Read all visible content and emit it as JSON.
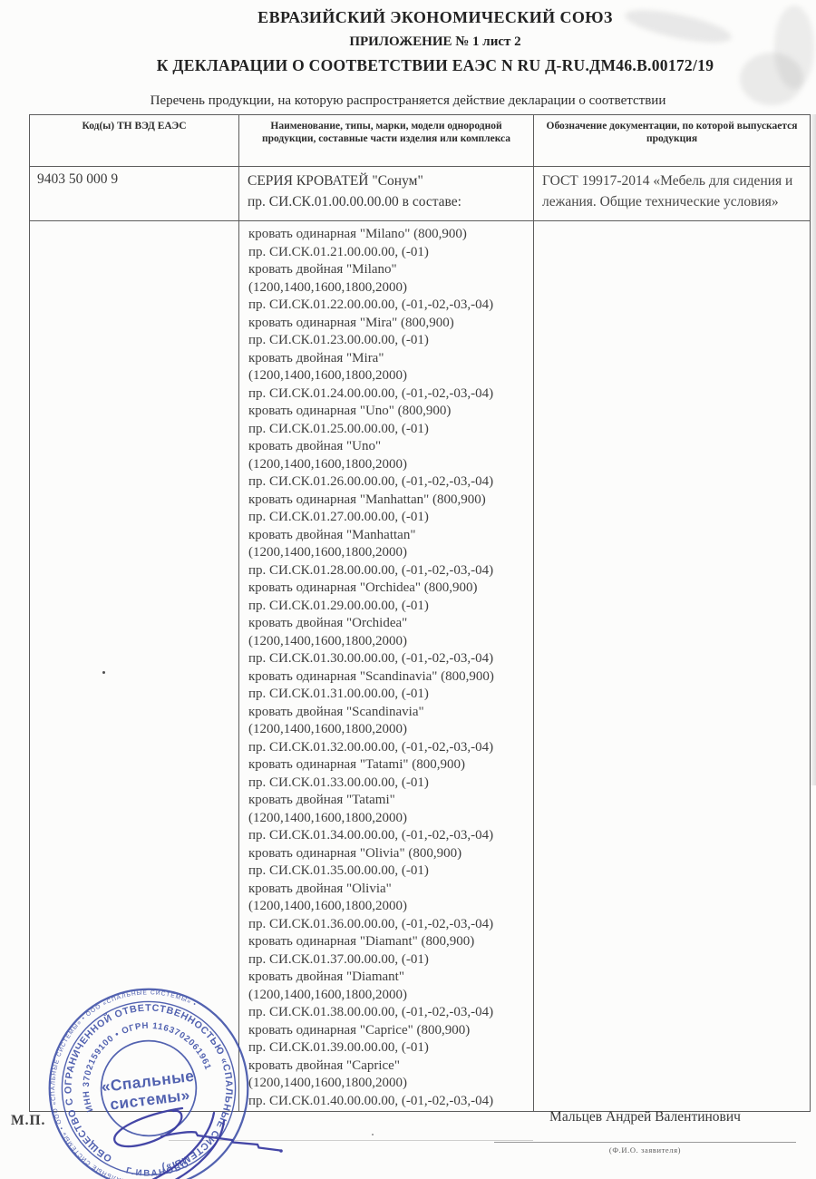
{
  "header": {
    "title_line1": "ЕВРАЗИЙСКИЙ ЭКОНОМИЧЕСКИЙ СОЮЗ",
    "title_line2": "ПРИЛОЖЕНИЕ № 1 лист 2",
    "title_line3": "К ДЕКЛАРАЦИИ О СООТВЕТСТВИИ ЕАЭС N RU Д-RU.ДМ46.В.00172/19",
    "subtitle": "Перечень продукции, на которую распространяется действие декларации о соответствии"
  },
  "table": {
    "headers": [
      "Код(ы) ТН ВЭД ЕАЭС",
      "Наименование, типы, марки, модели однородной продукции, составные части изделия или комплекса",
      "Обозначение документации, по которой выпускается продукция"
    ],
    "row1": {
      "code": "9403 50 000 9",
      "name_line1": "СЕРИЯ КРОВАТЕЙ \"Сонум\"",
      "name_line2": "пр. СИ.СК.01.00.00.00.00 в составе:",
      "doc_line1": "ГОСТ 19917-2014 «Мебель для сидения и",
      "doc_line2": "лежания. Общие технические условия»"
    },
    "row2": {
      "products": [
        "кровать одинарная \"Milano\" (800,900)",
        "пр. СИ.СК.01.21.00.00.00, (-01)",
        "кровать двойная \"Milano\"",
        "(1200,1400,1600,1800,2000)",
        "пр. СИ.СК.01.22.00.00.00, (-01,-02,-03,-04)",
        "кровать одинарная \"Mira\" (800,900)",
        "пр. СИ.СК.01.23.00.00.00, (-01)",
        "кровать двойная \"Mira\"",
        "(1200,1400,1600,1800,2000)",
        "пр. СИ.СК.01.24.00.00.00, (-01,-02,-03,-04)",
        "кровать одинарная \"Uno\" (800,900)",
        "пр. СИ.СК.01.25.00.00.00, (-01)",
        "кровать двойная \"Uno\"",
        "(1200,1400,1600,1800,2000)",
        "пр. СИ.СК.01.26.00.00.00, (-01,-02,-03,-04)",
        "кровать одинарная \"Manhattan\" (800,900)",
        "пр. СИ.СК.01.27.00.00.00, (-01)",
        "кровать двойная \"Manhattan\"",
        "(1200,1400,1600,1800,2000)",
        "пр. СИ.СК.01.28.00.00.00, (-01,-02,-03,-04)",
        "кровать одинарная \"Orchidea\" (800,900)",
        "пр. СИ.СК.01.29.00.00.00, (-01)",
        "кровать двойная \"Orchidea\"",
        "(1200,1400,1600,1800,2000)",
        "пр. СИ.СК.01.30.00.00.00, (-01,-02,-03,-04)",
        "кровать одинарная \"Scandinavia\" (800,900)",
        "пр. СИ.СК.01.31.00.00.00, (-01)",
        "кровать двойная \"Scandinavia\"",
        "(1200,1400,1600,1800,2000)",
        "пр. СИ.СК.01.32.00.00.00, (-01,-02,-03,-04)",
        "кровать одинарная \"Tatami\" (800,900)",
        "пр. СИ.СК.01.33.00.00.00, (-01)",
        "кровать двойная \"Tatami\"",
        "(1200,1400,1600,1800,2000)",
        "пр. СИ.СК.01.34.00.00.00, (-01,-02,-03,-04)",
        "кровать одинарная \"Olivia\" (800,900)",
        "пр. СИ.СК.01.35.00.00.00, (-01)",
        "кровать двойная \"Olivia\"",
        "(1200,1400,1600,1800,2000)",
        "пр. СИ.СК.01.36.00.00.00, (-01,-02,-03,-04)",
        "кровать одинарная \"Diamant\" (800,900)",
        "пр. СИ.СК.01.37.00.00.00, (-01)",
        "кровать двойная \"Diamant\"",
        "(1200,1400,1600,1800,2000)",
        "пр. СИ.СК.01.38.00.00.00, (-01,-02,-03,-04)",
        "кровать одинарная \"Caprice\" (800,900)",
        "пр. СИ.СК.01.39.00.00.00, (-01)",
        "кровать двойная \"Caprice\"",
        "(1200,1400,1600,1800,2000)",
        "пр. СИ.СК.01.40.00.00.00, (-01,-02,-03,-04)"
      ]
    }
  },
  "footer": {
    "mp_label": "М.П.",
    "signer_name": "Мальцев Андрей Валентинович",
    "signer_caption": "(Ф.И.О. заявителя)"
  },
  "stamp": {
    "center_line1": "«Спальные",
    "center_line2": "системы»",
    "ring_company": "ОБЩЕСТВО С ОГРАНИЧЕННОЙ ОТВЕТСТВЕННОСТЬЮ «СПАЛЬНЫЕ СИСТЕМЫ»)",
    "ring_inn": "ИНН 3702159100 • ОГРН 1163702061961",
    "ring_city": "Г.ИВАНОВО",
    "ring_outer": "• ООО «СПАЛЬНЫЕ СИСТЕМЫ» • ООО «СПАЛЬНЫЕ СИСТЕМЫ» • ООО «СПАЛЬНЫЕ СИСТЕМЫ» •"
  },
  "colors": {
    "stamp_blue": "#3b4da6",
    "signature_blue": "#3b3da2",
    "text": "#333333"
  }
}
